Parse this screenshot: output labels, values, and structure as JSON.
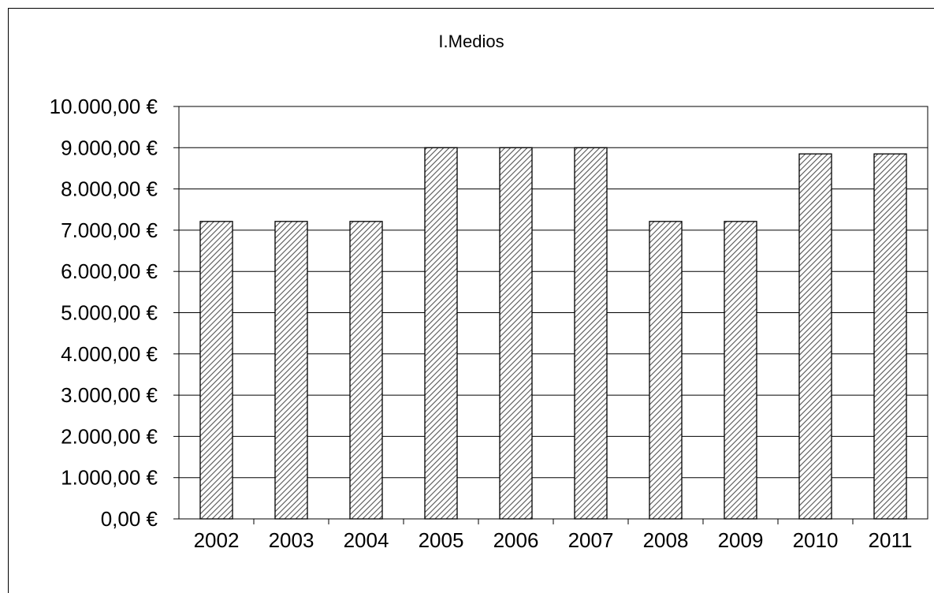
{
  "chart_data": {
    "type": "bar",
    "title": "I.Medios",
    "categories": [
      "2002",
      "2003",
      "2004",
      "2005",
      "2006",
      "2007",
      "2008",
      "2009",
      "2010",
      "2011"
    ],
    "values": [
      7212.15,
      7212.15,
      7212.15,
      9000,
      9000,
      9000,
      7212.15,
      7212.15,
      8850,
      8850
    ],
    "ylim": [
      0,
      10000
    ],
    "yticks": [
      0,
      1000,
      2000,
      3000,
      4000,
      5000,
      6000,
      7000,
      8000,
      9000,
      10000
    ],
    "ytick_labels": [
      "0,00 €",
      "1.000,00 €",
      "2.000,00 €",
      "3.000,00 €",
      "4.000,00 €",
      "5.000,00 €",
      "6.000,00 €",
      "7.000,00 €",
      "8.000,00 €",
      "9.000,00 €",
      "10.000,00 €"
    ],
    "xlabel": "",
    "ylabel": "",
    "grid": "horizontal",
    "legend": "none",
    "bar_fill": "hatched",
    "colors": {
      "bar_stroke": "#000000",
      "hatch": "#555555",
      "bar_background": "#ffffff",
      "grid": "#000000"
    }
  }
}
